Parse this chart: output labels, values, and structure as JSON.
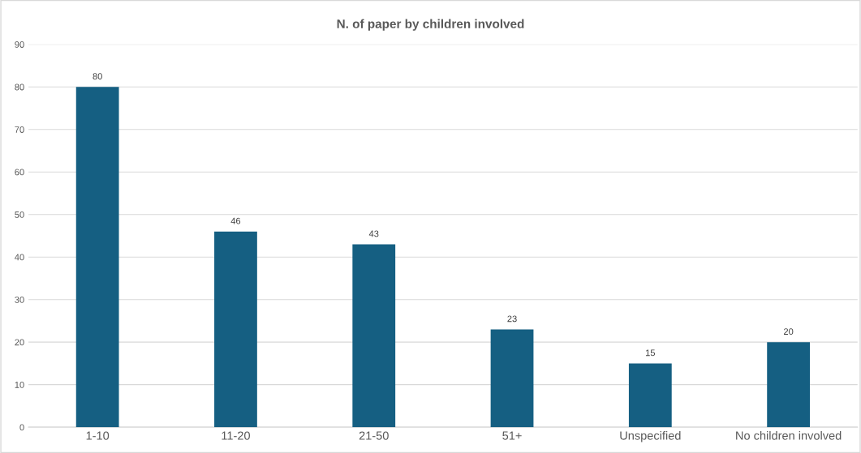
{
  "chart_data": {
    "type": "bar",
    "title": "N. of paper by children involved",
    "categories": [
      "1-10",
      "11-20",
      "21-50",
      "51+",
      "Unspecified",
      "No children involved"
    ],
    "values": [
      80,
      46,
      43,
      23,
      15,
      20
    ],
    "color": "#155f82",
    "ylim": [
      0,
      90
    ],
    "yticks": [
      0,
      10,
      20,
      30,
      40,
      50,
      60,
      70,
      80,
      90
    ],
    "grid": "y",
    "data_labels": true
  }
}
